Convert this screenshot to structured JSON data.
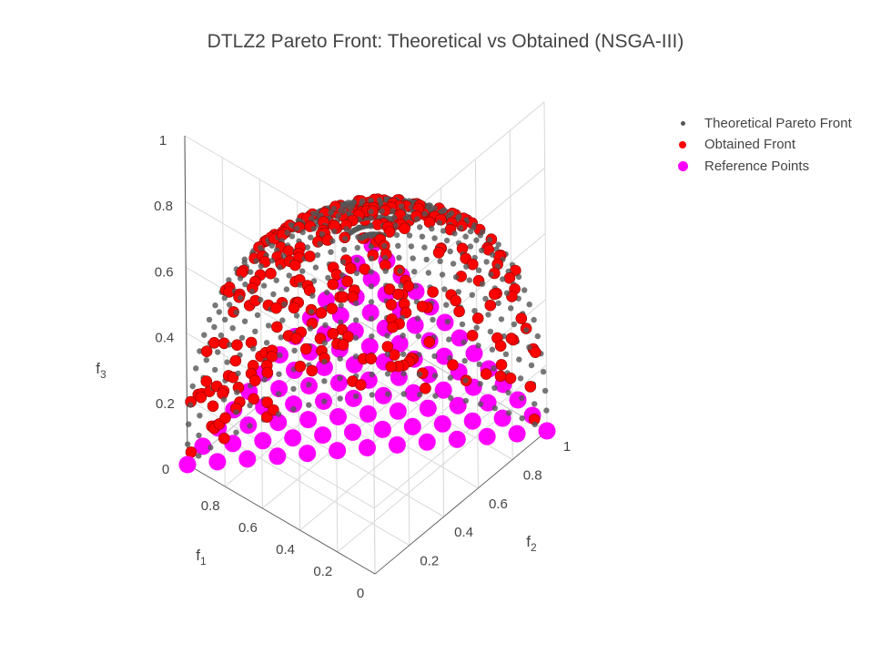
{
  "chart_data": {
    "type": "scatter",
    "title": "DTLZ2 Pareto Front: Theoretical vs Obtained (NSGA-III)",
    "axes": {
      "x": {
        "label": "f1",
        "ticks": [
          "0",
          "0.2",
          "0.4",
          "0.6",
          "0.8"
        ],
        "range": [
          0,
          1
        ]
      },
      "y": {
        "label": "f2",
        "ticks": [
          "0.2",
          "0.4",
          "0.6",
          "0.8",
          "1"
        ],
        "range": [
          0,
          1
        ]
      },
      "z": {
        "label": "f3",
        "ticks": [
          "0",
          "0.2",
          "0.4",
          "0.6",
          "0.8",
          "1"
        ],
        "range": [
          0,
          1
        ]
      }
    },
    "series": [
      {
        "name": "Theoretical Pareto Front",
        "color": "#555555",
        "description": "Points on the positive octant of the unit sphere f1^2+f2^2+f3^2=1",
        "generator": {
          "shape": "unit-sphere-octant",
          "grid": 25
        }
      },
      {
        "name": "Obtained Front",
        "color": "#ff0000",
        "description": "NSGA-III solutions lying on the unit sphere",
        "generator": {
          "shape": "unit-sphere-octant",
          "count": 300
        }
      },
      {
        "name": "Reference Points",
        "color": "#ff00ff",
        "description": "Das-Dennis reference points on the simplex f1+f2+f3=1, 12 divisions",
        "generator": {
          "shape": "simplex",
          "divisions": 12
        }
      }
    ],
    "legend": {
      "position": "top-right"
    },
    "grid": true
  }
}
